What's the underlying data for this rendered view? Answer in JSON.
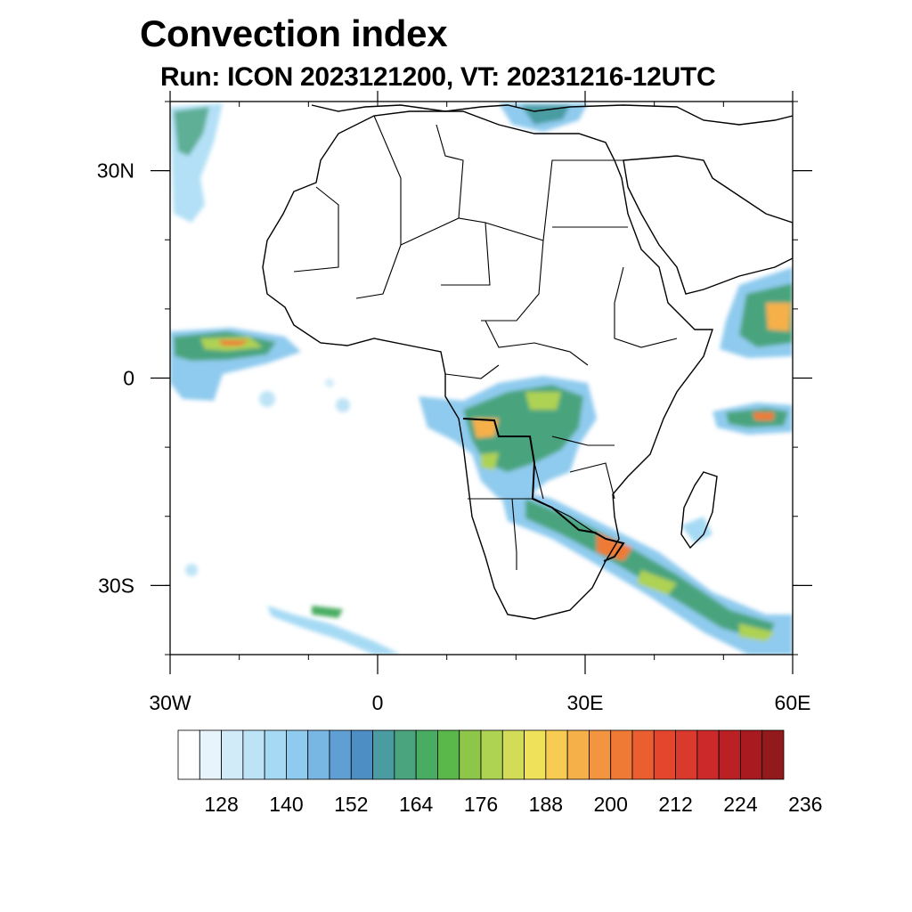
{
  "title": "Convection index",
  "subtitle": "Run: ICON 2023121200,  VT: 20231216-12UTC",
  "map": {
    "lat_ticks": [
      {
        "lat": 30,
        "label": "30N"
      },
      {
        "lat": 0,
        "label": "0"
      },
      {
        "lat": -30,
        "label": "30S"
      }
    ],
    "lon_ticks": [
      {
        "lon": -30,
        "label": "30W"
      },
      {
        "lon": 0,
        "label": "0"
      },
      {
        "lon": 30,
        "label": "30E"
      },
      {
        "lon": 60,
        "label": "60E"
      }
    ],
    "extent": {
      "lon_min": -30,
      "lon_max": 60,
      "lat_min": -40,
      "lat_max": 40
    }
  },
  "colorbar": {
    "colors": [
      "#ffffff",
      "#e8f4fc",
      "#d2ebf8",
      "#bde3f6",
      "#a6daf4",
      "#8fcbee",
      "#78b7e4",
      "#5f9fd4",
      "#4d8fc4",
      "#4a9ca2",
      "#4aa47e",
      "#48ad62",
      "#5ab84a",
      "#8ec64a",
      "#aed252",
      "#d2dc56",
      "#efe25a",
      "#f8cc52",
      "#f5b04a",
      "#f39540",
      "#ef7a36",
      "#eb5e30",
      "#e3462c",
      "#d93a2c",
      "#cc2a2a",
      "#bb2024",
      "#a81a20",
      "#931a1c"
    ],
    "tick_labels": [
      "128",
      "140",
      "152",
      "164",
      "176",
      "188",
      "200",
      "212",
      "224",
      "236"
    ]
  }
}
